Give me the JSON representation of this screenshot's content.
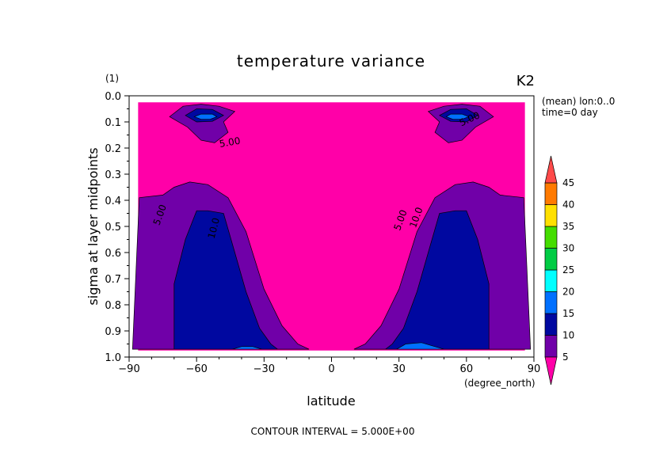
{
  "chart_data": {
    "type": "contour",
    "title": "temperature variance",
    "run_label": "K2",
    "units_label": "(1)",
    "info_lines": [
      "(mean) lon:0..0",
      "time=0 day"
    ],
    "xlabel": "latitude",
    "xunits": "(degree_north)",
    "ylabel": "sigma at layer midpoints",
    "xlim": [
      -90,
      90
    ],
    "ylim": [
      1.0,
      0.0
    ],
    "x_ticks": [
      "−90",
      "−60",
      "−30",
      "0",
      "30",
      "60",
      "90"
    ],
    "y_ticks": [
      "0.0",
      "0.1",
      "0.2",
      "0.3",
      "0.4",
      "0.5",
      "0.6",
      "0.7",
      "0.8",
      "0.9",
      "1.0"
    ],
    "footer": "CONTOUR INTERVAL = 5.000E+00",
    "data_extent": {
      "lat": [
        -86,
        86
      ],
      "sigma": [
        0.025,
        0.975
      ]
    },
    "colorbar": {
      "levels": [
        5,
        10,
        15,
        20,
        25,
        30,
        35,
        40,
        45
      ],
      "level_labels": [
        "5",
        "10",
        "15",
        "20",
        "25",
        "30",
        "35",
        "40",
        "45"
      ],
      "colors": [
        "#ff00a8",
        "#7000a8",
        "#0008a0",
        "#0070ff",
        "#00ffff",
        "#00cc44",
        "#44dd00",
        "#ffe000",
        "#ff7a00",
        "#ff4a4a"
      ]
    },
    "contour_labels": [
      {
        "text": "5.00",
        "lat": -45,
        "sigma": 0.19,
        "rotate": -10
      },
      {
        "text": "5.00",
        "lat": 62,
        "sigma": 0.1,
        "rotate": -25
      },
      {
        "text": "5.00",
        "lat": -75,
        "sigma": 0.46,
        "rotate": -70
      },
      {
        "text": "5.00",
        "lat": 32,
        "sigma": 0.48,
        "rotate": -70
      },
      {
        "text": "10.0",
        "lat": -51,
        "sigma": 0.51,
        "rotate": -75
      },
      {
        "text": "10.0",
        "lat": 39,
        "sigma": 0.47,
        "rotate": -70
      }
    ],
    "regions": [
      {
        "level": "5-10",
        "poly": [
          [
            -88.5,
            0.97
          ],
          [
            -85.5,
            0.39
          ],
          [
            -75,
            0.38
          ],
          [
            -70,
            0.35
          ],
          [
            -63,
            0.33
          ],
          [
            -55,
            0.34
          ],
          [
            -46,
            0.39
          ],
          [
            -38,
            0.52
          ],
          [
            -30,
            0.74
          ],
          [
            -22,
            0.88
          ],
          [
            -15,
            0.95
          ],
          [
            -10,
            0.97
          ]
        ]
      },
      {
        "level": "5-10",
        "poly": [
          [
            88.5,
            0.97
          ],
          [
            85.5,
            0.39
          ],
          [
            75,
            0.38
          ],
          [
            70,
            0.35
          ],
          [
            63,
            0.33
          ],
          [
            55,
            0.34
          ],
          [
            46,
            0.39
          ],
          [
            38,
            0.52
          ],
          [
            30,
            0.74
          ],
          [
            22,
            0.88
          ],
          [
            15,
            0.95
          ],
          [
            10,
            0.97
          ]
        ]
      },
      {
        "level": "10-15",
        "poly": [
          [
            -70,
            0.97
          ],
          [
            -70,
            0.72
          ],
          [
            -65,
            0.55
          ],
          [
            -60,
            0.44
          ],
          [
            -55,
            0.44
          ],
          [
            -48,
            0.45
          ],
          [
            -44,
            0.57
          ],
          [
            -38,
            0.75
          ],
          [
            -32,
            0.89
          ],
          [
            -27,
            0.95
          ],
          [
            -24,
            0.97
          ]
        ]
      },
      {
        "level": "10-15",
        "poly": [
          [
            70,
            0.97
          ],
          [
            70,
            0.72
          ],
          [
            65,
            0.55
          ],
          [
            60,
            0.44
          ],
          [
            55,
            0.44
          ],
          [
            48,
            0.45
          ],
          [
            44,
            0.57
          ],
          [
            38,
            0.75
          ],
          [
            32,
            0.89
          ],
          [
            27,
            0.95
          ],
          [
            24,
            0.97
          ]
        ]
      },
      {
        "level": "15-20",
        "poly": [
          [
            -44,
            0.97
          ],
          [
            -40,
            0.96
          ],
          [
            -35,
            0.96
          ],
          [
            -31,
            0.97
          ]
        ]
      },
      {
        "level": "15-20",
        "poly": [
          [
            29,
            0.97
          ],
          [
            33,
            0.95
          ],
          [
            40,
            0.945
          ],
          [
            46,
            0.96
          ],
          [
            50,
            0.97
          ]
        ]
      },
      {
        "level": "5-10",
        "poly": [
          [
            -72,
            0.08
          ],
          [
            -66,
            0.04
          ],
          [
            -58,
            0.032
          ],
          [
            -50,
            0.04
          ],
          [
            -43,
            0.06
          ],
          [
            -48,
            0.1
          ],
          [
            -46,
            0.14
          ],
          [
            -52,
            0.18
          ],
          [
            -58,
            0.17
          ],
          [
            -64,
            0.12
          ]
        ]
      },
      {
        "level": "5-10",
        "poly": [
          [
            72,
            0.08
          ],
          [
            66,
            0.04
          ],
          [
            58,
            0.032
          ],
          [
            50,
            0.04
          ],
          [
            43,
            0.06
          ],
          [
            48,
            0.1
          ],
          [
            46,
            0.14
          ],
          [
            52,
            0.18
          ],
          [
            58,
            0.17
          ],
          [
            64,
            0.12
          ]
        ]
      },
      {
        "level": "10-15",
        "poly": [
          [
            -65,
            0.075
          ],
          [
            -60,
            0.05
          ],
          [
            -53,
            0.052
          ],
          [
            -48,
            0.075
          ],
          [
            -53,
            0.098
          ],
          [
            -60,
            0.1
          ]
        ]
      },
      {
        "level": "10-15",
        "poly": [
          [
            65,
            0.075
          ],
          [
            60,
            0.05
          ],
          [
            53,
            0.052
          ],
          [
            48,
            0.075
          ],
          [
            53,
            0.098
          ],
          [
            60,
            0.1
          ]
        ]
      },
      {
        "level": "15-20",
        "poly": [
          [
            -61,
            0.08
          ],
          [
            -58,
            0.07
          ],
          [
            -53,
            0.07
          ],
          [
            -51,
            0.08
          ],
          [
            -54,
            0.09
          ],
          [
            -58,
            0.09
          ]
        ]
      },
      {
        "level": "15-20",
        "poly": [
          [
            61,
            0.08
          ],
          [
            58,
            0.07
          ],
          [
            53,
            0.07
          ],
          [
            51,
            0.08
          ],
          [
            54,
            0.09
          ],
          [
            58,
            0.09
          ]
        ]
      }
    ]
  }
}
